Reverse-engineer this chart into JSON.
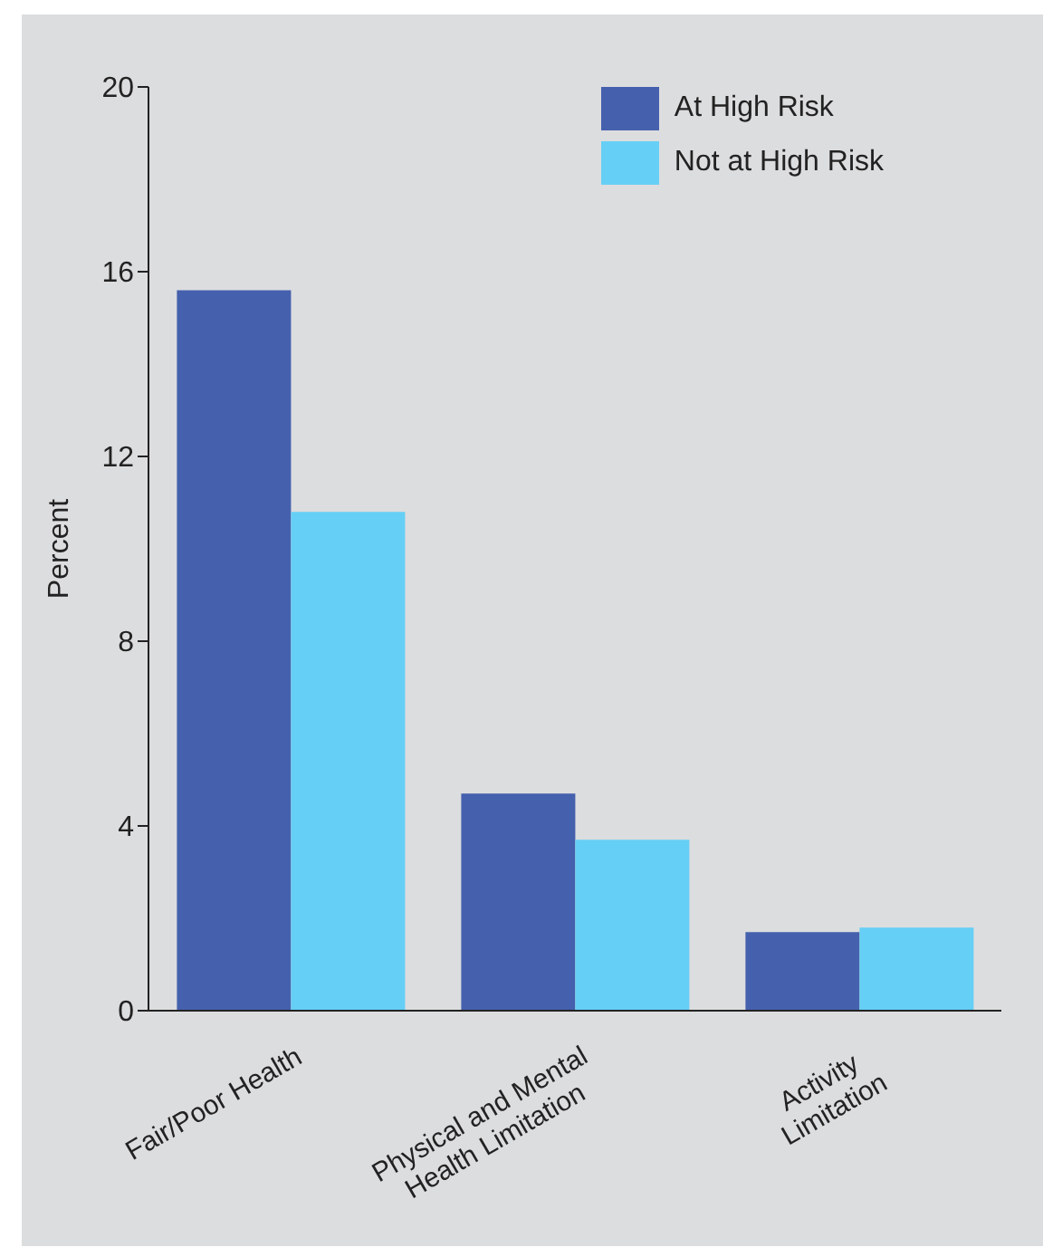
{
  "chart_data": {
    "type": "bar",
    "ylabel": "Percent",
    "categories": [
      "Fair/Poor Health",
      "Physical and Mental\nHealth Limitation",
      "Activity\nLimitation"
    ],
    "series": [
      {
        "name": "At High Risk",
        "color": "#4560ad",
        "values": [
          15.6,
          4.7,
          1.7
        ]
      },
      {
        "name": "Not at High Risk",
        "color": "#66cff5",
        "values": [
          10.8,
          3.7,
          1.8
        ]
      }
    ],
    "ylim": [
      0,
      20
    ],
    "yticks": [
      0,
      4,
      8,
      12,
      16,
      20
    ],
    "grid": false,
    "legend": "top right"
  }
}
